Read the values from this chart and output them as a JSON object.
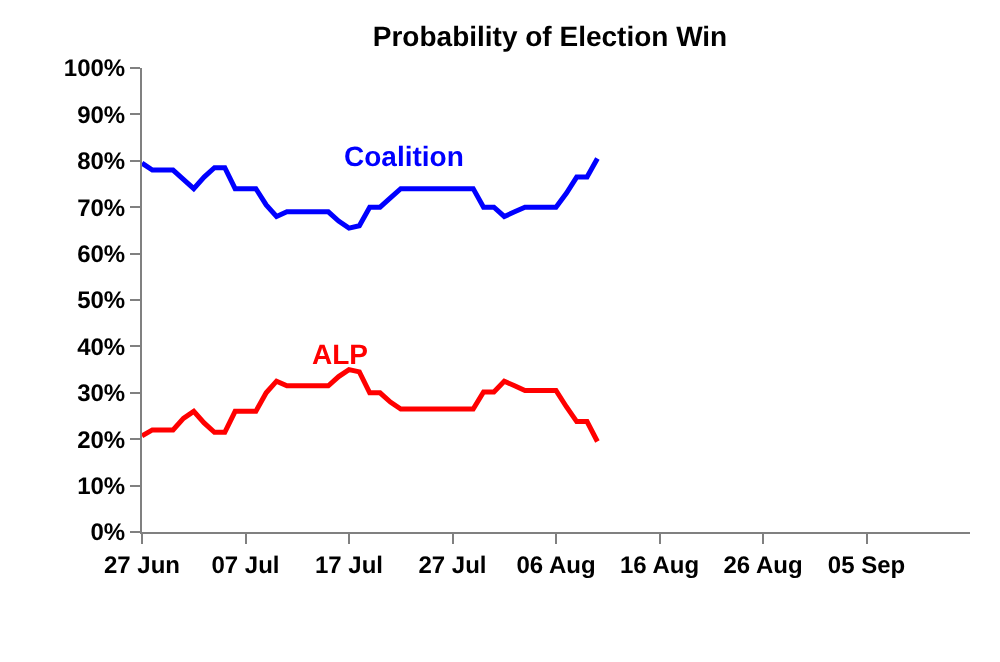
{
  "chart_data": {
    "type": "line",
    "title": "Probability of Election Win",
    "x": [
      "--06-27",
      "--06-28",
      "--06-29",
      "--06-30",
      "--07-01",
      "--07-02",
      "--07-03",
      "--07-04",
      "--07-05",
      "--07-06",
      "--07-07",
      "--07-08",
      "--07-09",
      "--07-10",
      "--07-11",
      "--07-12",
      "--07-13",
      "--07-14",
      "--07-15",
      "--07-16",
      "--07-17",
      "--07-18",
      "--07-19",
      "--07-20",
      "--07-21",
      "--07-22",
      "--07-23",
      "--07-24",
      "--07-25",
      "--07-26",
      "--07-27",
      "--07-28",
      "--07-29",
      "--07-30",
      "--07-31",
      "--08-01",
      "--08-02",
      "--08-03",
      "--08-04",
      "--08-05",
      "--08-06",
      "--08-07",
      "--08-08",
      "--08-09",
      "--08-10"
    ],
    "series": [
      {
        "name": "Coalition",
        "color": "#0000ff",
        "values": [
          79.5,
          78,
          78,
          78,
          76,
          74,
          76.5,
          78.5,
          78.5,
          74,
          74,
          74,
          70.5,
          68,
          69,
          69,
          69,
          69,
          69,
          67,
          65.5,
          66,
          70,
          70,
          72,
          74,
          74,
          74,
          74,
          74,
          74,
          74,
          74,
          70,
          70,
          68,
          69,
          70,
          70,
          70,
          70,
          73,
          76.5,
          76.5,
          80.5
        ]
      },
      {
        "name": "ALP",
        "color": "#ff0000",
        "values": [
          20.7,
          22,
          22,
          22,
          24.5,
          26,
          23.5,
          21.5,
          21.5,
          26,
          26,
          26,
          30,
          32.5,
          31.5,
          31.5,
          31.5,
          31.5,
          31.5,
          33.5,
          35,
          34.5,
          30,
          30,
          28,
          26.5,
          26.5,
          26.5,
          26.5,
          26.5,
          26.5,
          26.5,
          26.5,
          30.2,
          30.2,
          32.5,
          31.5,
          30.5,
          30.5,
          30.5,
          30.5,
          27,
          23.8,
          23.8,
          19.5
        ]
      }
    ],
    "xlim": [
      "--06-27",
      "--09-15"
    ],
    "xticks": [
      {
        "value": "--06-27",
        "label": "27 Jun"
      },
      {
        "value": "--07-07",
        "label": "07 Jul"
      },
      {
        "value": "--07-17",
        "label": "17 Jul"
      },
      {
        "value": "--07-27",
        "label": "27 Jul"
      },
      {
        "value": "--08-06",
        "label": "06 Aug"
      },
      {
        "value": "--08-16",
        "label": "16 Aug"
      },
      {
        "value": "--08-26",
        "label": "26 Aug"
      },
      {
        "value": "--09-05",
        "label": "05 Sep"
      }
    ],
    "ylim": [
      0,
      100
    ],
    "yticks": [
      {
        "value": 0,
        "label": "0%"
      },
      {
        "value": 10,
        "label": "10%"
      },
      {
        "value": 20,
        "label": "20%"
      },
      {
        "value": 30,
        "label": "30%"
      },
      {
        "value": 40,
        "label": "40%"
      },
      {
        "value": 50,
        "label": "50%"
      },
      {
        "value": 60,
        "label": "60%"
      },
      {
        "value": 70,
        "label": "70%"
      },
      {
        "value": 80,
        "label": "80%"
      },
      {
        "value": 90,
        "label": "90%"
      },
      {
        "value": 100,
        "label": "100%"
      }
    ],
    "legend": false,
    "marker": "none",
    "line_style": "solid"
  }
}
